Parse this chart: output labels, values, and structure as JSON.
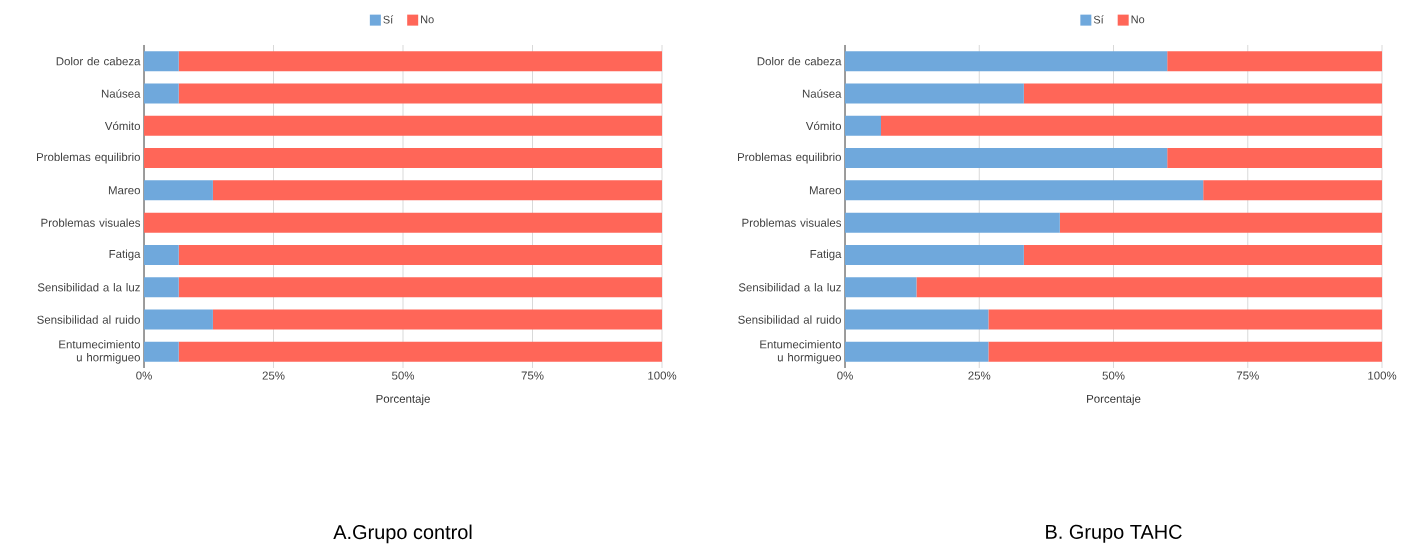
{
  "chart_data": [
    {
      "type": "bar",
      "orientation": "horizontal",
      "stacked": true,
      "title": "A.Grupo control",
      "xlabel": "Porcentaje",
      "categories": [
        "Dolor de cabeza",
        "Naúsea",
        "Vómito",
        "Problemas equilibrio",
        "Mareo",
        "Problemas visuales",
        "Fatiga",
        "Sensibilidad a la luz",
        "Sensibilidad al ruido",
        "Entumecimiento u hormigueo"
      ],
      "series": [
        {
          "name": "Sí",
          "color": "#6fa8dc",
          "values": [
            6.7,
            6.7,
            0,
            0,
            13.3,
            0,
            6.7,
            6.7,
            13.3,
            6.7
          ]
        },
        {
          "name": "No",
          "color": "#ff6658",
          "values": [
            93.3,
            93.3,
            100,
            100,
            86.7,
            100,
            93.3,
            93.3,
            86.7,
            93.3
          ]
        }
      ],
      "xlim": [
        0,
        100
      ],
      "xticks": [
        {
          "value": 0,
          "label": "0%"
        },
        {
          "value": 25,
          "label": "25%"
        },
        {
          "value": 50,
          "label": "50%"
        },
        {
          "value": 75,
          "label": "75%"
        },
        {
          "value": 100,
          "label": "100%"
        }
      ],
      "grid": "x",
      "legend": "top"
    },
    {
      "type": "bar",
      "orientation": "horizontal",
      "stacked": true,
      "title": "B. Grupo TAHC",
      "xlabel": "Porcentaje",
      "categories": [
        "Dolor de cabeza",
        "Naúsea",
        "Vómito",
        "Problemas equilibrio",
        "Mareo",
        "Problemas visuales",
        "Fatiga",
        "Sensibilidad a la luz",
        "Sensibilidad al ruido",
        "Entumecimiento u hormigueo"
      ],
      "series": [
        {
          "name": "Sí",
          "color": "#6fa8dc",
          "values": [
            60,
            33.3,
            6.7,
            60,
            66.7,
            40,
            33.3,
            13.3,
            26.7,
            26.7
          ]
        },
        {
          "name": "No",
          "color": "#ff6658",
          "values": [
            40,
            66.7,
            93.3,
            40,
            33.3,
            60,
            66.7,
            86.7,
            73.3,
            73.3
          ]
        }
      ],
      "xlim": [
        0,
        100
      ],
      "xticks": [
        {
          "value": 0,
          "label": "0%"
        },
        {
          "value": 25,
          "label": "25%"
        },
        {
          "value": 50,
          "label": "50%"
        },
        {
          "value": 75,
          "label": "75%"
        },
        {
          "value": 100,
          "label": "100%"
        }
      ],
      "grid": "x",
      "legend": "top"
    }
  ]
}
